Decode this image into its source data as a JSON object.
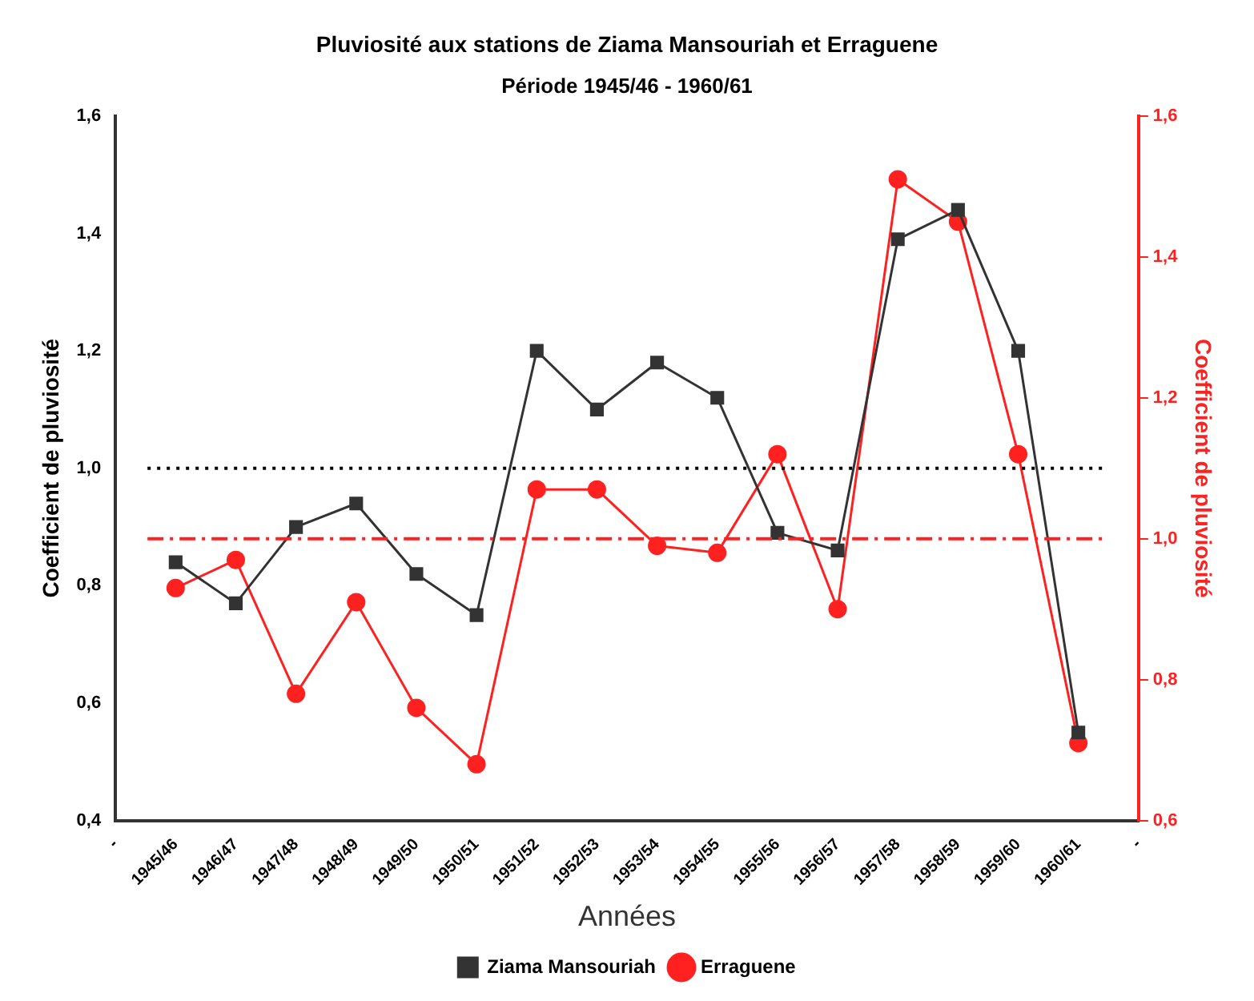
{
  "chart_data": {
    "type": "line",
    "title": "Pluviosité aux stations de Ziama Mansouriah et Erraguene",
    "subtitle": "Période 1945/46 - 1960/61",
    "xlabel": "Années",
    "ylabel": "Coefficient de pluviosité",
    "y2label": "Coefficient de pluviosité",
    "categories": [
      "-",
      "1945/46",
      "1946/47",
      "1947/48",
      "1948/49",
      "1949/50",
      "1950/51",
      "1951/52",
      "1952/53",
      "1953/54",
      "1954/55",
      "1955/56",
      "1956/57",
      "1957/58",
      "1958/59",
      "1959/60",
      "1960/61",
      "-"
    ],
    "series": [
      {
        "name": "Ziama Mansouriah",
        "color": "#333333",
        "marker": "square",
        "values": [
          null,
          0.84,
          0.77,
          0.9,
          0.94,
          0.82,
          0.75,
          1.2,
          1.1,
          1.18,
          1.12,
          0.89,
          0.86,
          1.39,
          1.44,
          1.2,
          0.55,
          null
        ]
      },
      {
        "name": "Erraguene",
        "color": "#ff2020",
        "marker": "circle",
        "axis": "y2",
        "values": [
          null,
          0.93,
          0.97,
          0.78,
          0.91,
          0.76,
          0.68,
          1.07,
          1.07,
          0.99,
          0.98,
          1.12,
          0.9,
          1.51,
          1.45,
          1.12,
          0.71,
          null
        ]
      }
    ],
    "ylim": [
      0.4,
      1.6
    ],
    "yticks": [
      {
        "value": 0.4,
        "label": "0,4"
      },
      {
        "value": 0.6,
        "label": "0,6"
      },
      {
        "value": 0.8,
        "label": "0,8"
      },
      {
        "value": 1.0,
        "label": "1,0"
      },
      {
        "value": 1.2,
        "label": "1,2"
      },
      {
        "value": 1.4,
        "label": "1,4"
      },
      {
        "value": 1.6,
        "label": "1,6"
      }
    ],
    "y2lim": [
      0.6,
      1.6
    ],
    "y2ticks": [
      {
        "value": 0.6,
        "label": "0,6"
      },
      {
        "value": 0.8,
        "label": "0,8"
      },
      {
        "value": 1.0,
        "label": "1,0"
      },
      {
        "value": 1.2,
        "label": "1,2"
      },
      {
        "value": 1.4,
        "label": "1,4"
      },
      {
        "value": 1.6,
        "label": "1,6"
      }
    ],
    "ref_lines": [
      {
        "axis": "y",
        "value": 1.0,
        "color": "#000000",
        "line_style": "dotted"
      },
      {
        "axis": "y2",
        "value": 1.0,
        "color": "#ff2020",
        "line_style": "dashed"
      }
    ],
    "legend": "bottom",
    "grid": false
  }
}
